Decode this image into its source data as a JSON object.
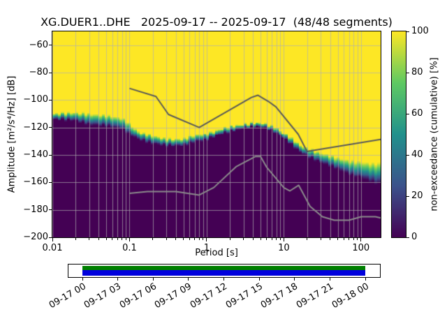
{
  "chart_data": {
    "type": "heatmap",
    "title": "XG.DUER1..DHE   2025-09-17 -- 2025-09-17  (48/48 segments)",
    "xlabel": "Period [s]",
    "ylabel": "Amplitude [m²/s⁴/Hz] [dB]",
    "colorbar_label": "non-exceedance (cumulative) [%]",
    "x_scale": "log",
    "xlim": [
      0.01,
      180
    ],
    "ylim": [
      -200,
      -50
    ],
    "x_ticks": [
      0.01,
      0.1,
      1,
      10,
      100
    ],
    "x_tick_labels": [
      "0.01",
      "0.1",
      "1",
      "10",
      "100"
    ],
    "y_ticks": [
      -60,
      -80,
      -100,
      -120,
      -140,
      -160,
      -180,
      -200
    ],
    "y_tick_labels": [
      "−60",
      "−80",
      "−100",
      "−120",
      "−140",
      "−160",
      "−180",
      "−200"
    ],
    "colorbar_ticks": [
      0,
      20,
      40,
      60,
      80,
      100
    ],
    "colormap": [
      [
        0,
        "#440154"
      ],
      [
        0.25,
        "#3b528b"
      ],
      [
        0.5,
        "#21918c"
      ],
      [
        0.75,
        "#5ec962"
      ],
      [
        1,
        "#fde725"
      ]
    ],
    "grid_color": "#b0b0b0",
    "distribution": {
      "periods": [
        0.01,
        0.02,
        0.03,
        0.05,
        0.08,
        0.1,
        0.13,
        0.2,
        0.3,
        0.5,
        0.7,
        1,
        1.5,
        2,
        3,
        4,
        5,
        6,
        8,
        10,
        13,
        17,
        20,
        30,
        50,
        70,
        100,
        140,
        180
      ],
      "median_db": [
        -112,
        -112,
        -114,
        -115,
        -117,
        -121,
        -126,
        -129,
        -131,
        -131,
        -128,
        -127,
        -123,
        -121,
        -119,
        -118,
        -118,
        -119,
        -122,
        -126,
        -131,
        -136,
        -138,
        -142,
        -146,
        -149,
        -151,
        -153,
        -154
      ],
      "halfwidth_db": [
        2,
        3,
        4,
        4,
        4,
        4,
        3,
        3,
        2.5,
        2.5,
        2.5,
        2.5,
        2,
        2,
        1.5,
        1.5,
        1.5,
        1.5,
        2,
        2,
        2.5,
        2.5,
        3,
        3.5,
        4,
        5,
        6,
        7,
        8
      ]
    },
    "noise_models": {
      "nhnm": {
        "periods": [
          0.1,
          0.22,
          0.32,
          0.8,
          3.8,
          4.6,
          6.3,
          7.9,
          15.4,
          20,
          180
        ],
        "db": [
          -91.5,
          -97.4,
          -110.5,
          -120,
          -98.1,
          -96.5,
          -101,
          -105,
          -125,
          -137.5,
          -128.7
        ],
        "color": "#595959"
      },
      "nlnm": {
        "periods": [
          0.1,
          0.17,
          0.4,
          0.8,
          1.24,
          2.4,
          4.3,
          5,
          6,
          10,
          12,
          15.6,
          21.9,
          31.6,
          45,
          70,
          101,
          154,
          180
        ],
        "db": [
          -168,
          -166.7,
          -166.7,
          -169.2,
          -163.7,
          -148.6,
          -141.1,
          -141.1,
          -149,
          -163.8,
          -166.2,
          -162.1,
          -177.5,
          -185,
          -187.5,
          -187.5,
          -185,
          -185,
          -185.9
        ],
        "color": "#8c8c8c"
      }
    },
    "timeline": {
      "tick_labels": [
        "09-17 00",
        "09-17 03",
        "09-17 06",
        "09-17 09",
        "09-17 12",
        "09-17 15",
        "09-17 18",
        "09-17 21",
        "09-18 00"
      ],
      "coverage_colors": [
        "#008000",
        "#0000dd"
      ]
    }
  }
}
